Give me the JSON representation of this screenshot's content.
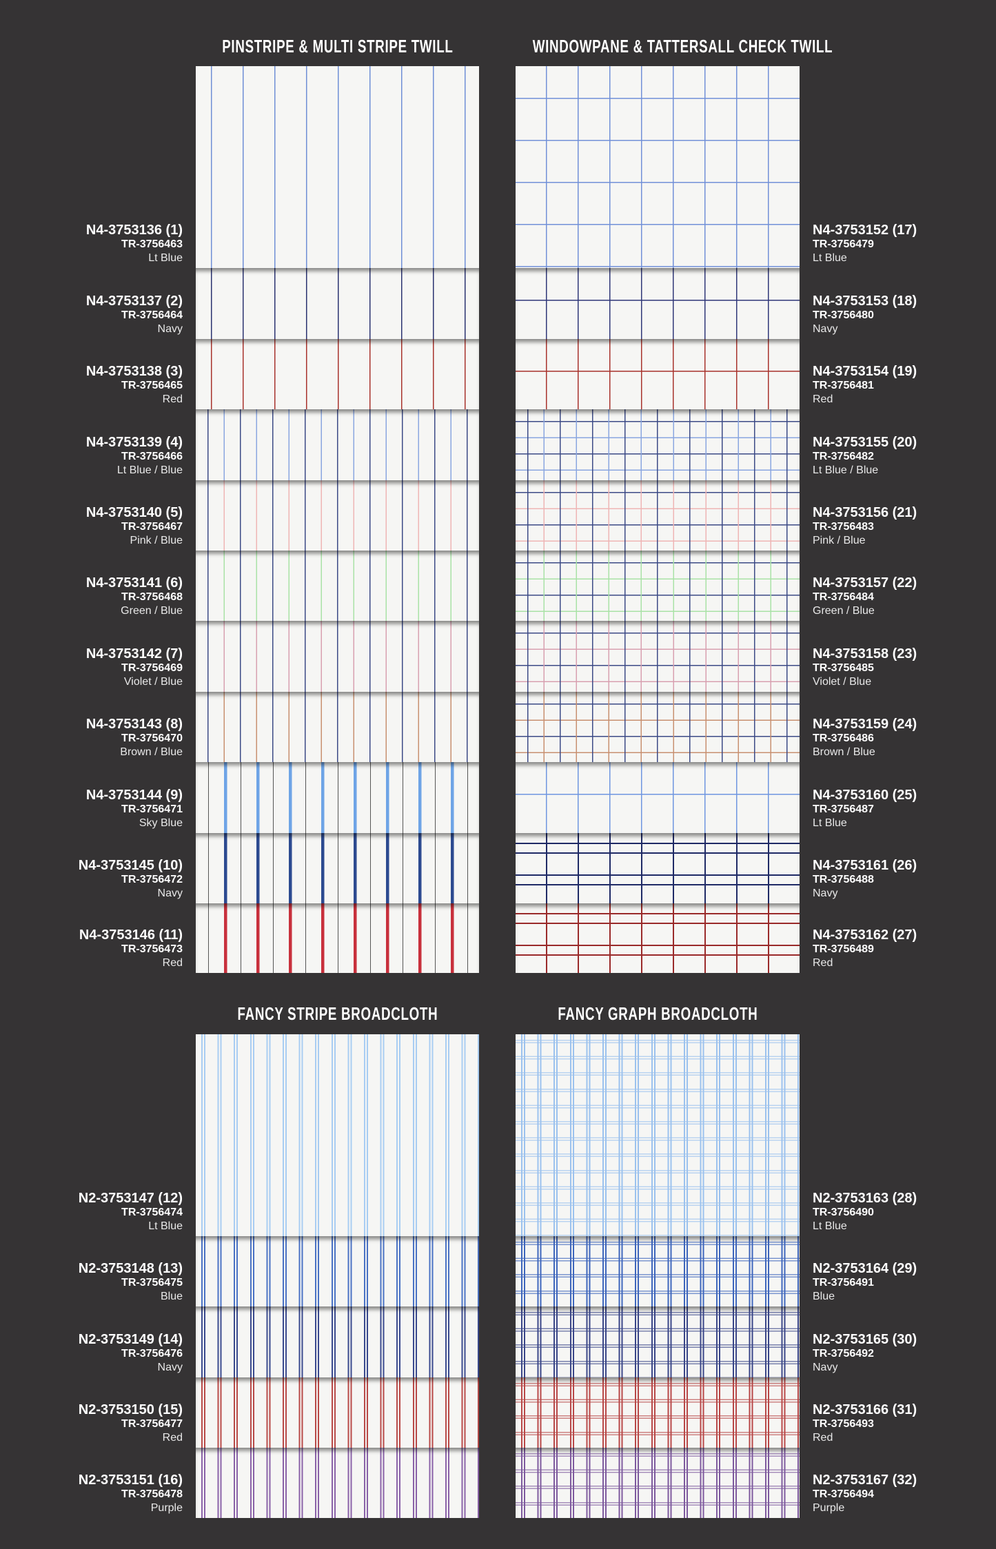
{
  "sections": [
    {
      "title": "PINSTRIPE & MULTI STRIPE TWILL",
      "side": "left",
      "items": [
        {
          "code": "N4-3753136 (1)",
          "tr": "TR-3756463",
          "color": "Lt Blue",
          "stripe_colors": [
            "#6f8fd6"
          ]
        },
        {
          "code": "N4-3753137 (2)",
          "tr": "TR-3756464",
          "color": "Navy",
          "stripe_colors": [
            "#2a3270"
          ]
        },
        {
          "code": "N4-3753138 (3)",
          "tr": "TR-3756465",
          "color": "Red",
          "stripe_colors": [
            "#a8322c"
          ]
        },
        {
          "code": "N4-3753139 (4)",
          "tr": "TR-3756466",
          "color": "Lt Blue / Blue",
          "stripe_colors": [
            "#3c4a86",
            "#8aa6e0"
          ]
        },
        {
          "code": "N4-3753140 (5)",
          "tr": "TR-3756467",
          "color": "Pink / Blue",
          "stripe_colors": [
            "#3c4a86",
            "#efb5b5"
          ]
        },
        {
          "code": "N4-3753141 (6)",
          "tr": "TR-3756468",
          "color": "Green / Blue",
          "stripe_colors": [
            "#3c4a86",
            "#a9e2a6"
          ]
        },
        {
          "code": "N4-3753142 (7)",
          "tr": "TR-3756469",
          "color": "Violet / Blue",
          "stripe_colors": [
            "#3c4a86",
            "#d8a0b0"
          ]
        },
        {
          "code": "N4-3753143 (8)",
          "tr": "TR-3756470",
          "color": "Brown / Blue",
          "stripe_colors": [
            "#3c4a86",
            "#c89070"
          ]
        },
        {
          "code": "N4-3753144 (9)",
          "tr": "TR-3756471",
          "color": "Sky Blue",
          "stripe_colors": [
            "#6ea4e6",
            "#555555"
          ]
        },
        {
          "code": "N4-3753145 (10)",
          "tr": "TR-3756472",
          "color": "Navy",
          "stripe_colors": [
            "#2c4a90",
            "#555555"
          ]
        },
        {
          "code": "N4-3753146 (11)",
          "tr": "TR-3756473",
          "color": "Red",
          "stripe_colors": [
            "#c8303c",
            "#555555"
          ]
        }
      ]
    },
    {
      "title": "WINDOWPANE & TATTERSALL CHECK TWILL",
      "side": "right",
      "items": [
        {
          "code": "N4-3753152 (17)",
          "tr": "TR-3756479",
          "color": "Lt Blue",
          "stripe_colors": [
            "#7190d8"
          ]
        },
        {
          "code": "N4-3753153 (18)",
          "tr": "TR-3756480",
          "color": "Navy",
          "stripe_colors": [
            "#2f3778"
          ]
        },
        {
          "code": "N4-3753154 (19)",
          "tr": "TR-3756481",
          "color": "Red",
          "stripe_colors": [
            "#a8322c"
          ]
        },
        {
          "code": "N4-3753155 (20)",
          "tr": "TR-3756482",
          "color": "Lt Blue / Blue",
          "stripe_colors": [
            "#3c4a86",
            "#8aa6e0"
          ]
        },
        {
          "code": "N4-3753156 (21)",
          "tr": "TR-3756483",
          "color": "Pink / Blue",
          "stripe_colors": [
            "#3c4a86",
            "#efb5b5"
          ]
        },
        {
          "code": "N4-3753157 (22)",
          "tr": "TR-3756484",
          "color": "Green / Blue",
          "stripe_colors": [
            "#3c4a86",
            "#a9e2a6"
          ]
        },
        {
          "code": "N4-3753158 (23)",
          "tr": "TR-3756485",
          "color": "Violet / Blue",
          "stripe_colors": [
            "#3c4a86",
            "#d8a0b0"
          ]
        },
        {
          "code": "N4-3753159 (24)",
          "tr": "TR-3756486",
          "color": "Brown / Blue",
          "stripe_colors": [
            "#3c4a86",
            "#c89070"
          ]
        },
        {
          "code": "N4-3753160 (25)",
          "tr": "TR-3756487",
          "color": "Lt Blue",
          "stripe_colors": [
            "#6f96e0"
          ]
        },
        {
          "code": "N4-3753161 (26)",
          "tr": "TR-3756488",
          "color": "Navy",
          "stripe_colors": [
            "#1f2a66"
          ]
        },
        {
          "code": "N4-3753162 (27)",
          "tr": "TR-3756489",
          "color": "Red",
          "stripe_colors": [
            "#9a2a2a"
          ]
        }
      ]
    },
    {
      "title": "FANCY STRIPE BROADCLOTH",
      "side": "left",
      "items": [
        {
          "code": "N2-3753147 (12)",
          "tr": "TR-3756474",
          "color": "Lt Blue",
          "stripe_colors": [
            "#a9cdf2"
          ]
        },
        {
          "code": "N2-3753148 (13)",
          "tr": "TR-3756475",
          "color": "Blue",
          "stripe_colors": [
            "#4a72c4"
          ]
        },
        {
          "code": "N2-3753149 (14)",
          "tr": "TR-3756476",
          "color": "Navy",
          "stripe_colors": [
            "#3a4a8e"
          ]
        },
        {
          "code": "N2-3753150 (15)",
          "tr": "TR-3756477",
          "color": "Red",
          "stripe_colors": [
            "#b84a48"
          ]
        },
        {
          "code": "N2-3753151 (16)",
          "tr": "TR-3756478",
          "color": "Purple",
          "stripe_colors": [
            "#8a62a8"
          ]
        }
      ]
    },
    {
      "title": "FANCY GRAPH BROADCLOTH",
      "side": "right",
      "items": [
        {
          "code": "N2-3753163 (28)",
          "tr": "TR-3756490",
          "color": "Lt Blue",
          "stripe_colors": [
            "#9cc2ee"
          ]
        },
        {
          "code": "N2-3753164 (29)",
          "tr": "TR-3756491",
          "color": "Blue",
          "stripe_colors": [
            "#3e66bc"
          ]
        },
        {
          "code": "N2-3753165 (30)",
          "tr": "TR-3756492",
          "color": "Navy",
          "stripe_colors": [
            "#3a4688"
          ]
        },
        {
          "code": "N2-3753166 (31)",
          "tr": "TR-3756493",
          "color": "Red",
          "stripe_colors": [
            "#b84848"
          ]
        },
        {
          "code": "N2-3753167 (32)",
          "tr": "TR-3756494",
          "color": "Purple",
          "stripe_colors": [
            "#7e5a9e"
          ]
        }
      ]
    }
  ]
}
